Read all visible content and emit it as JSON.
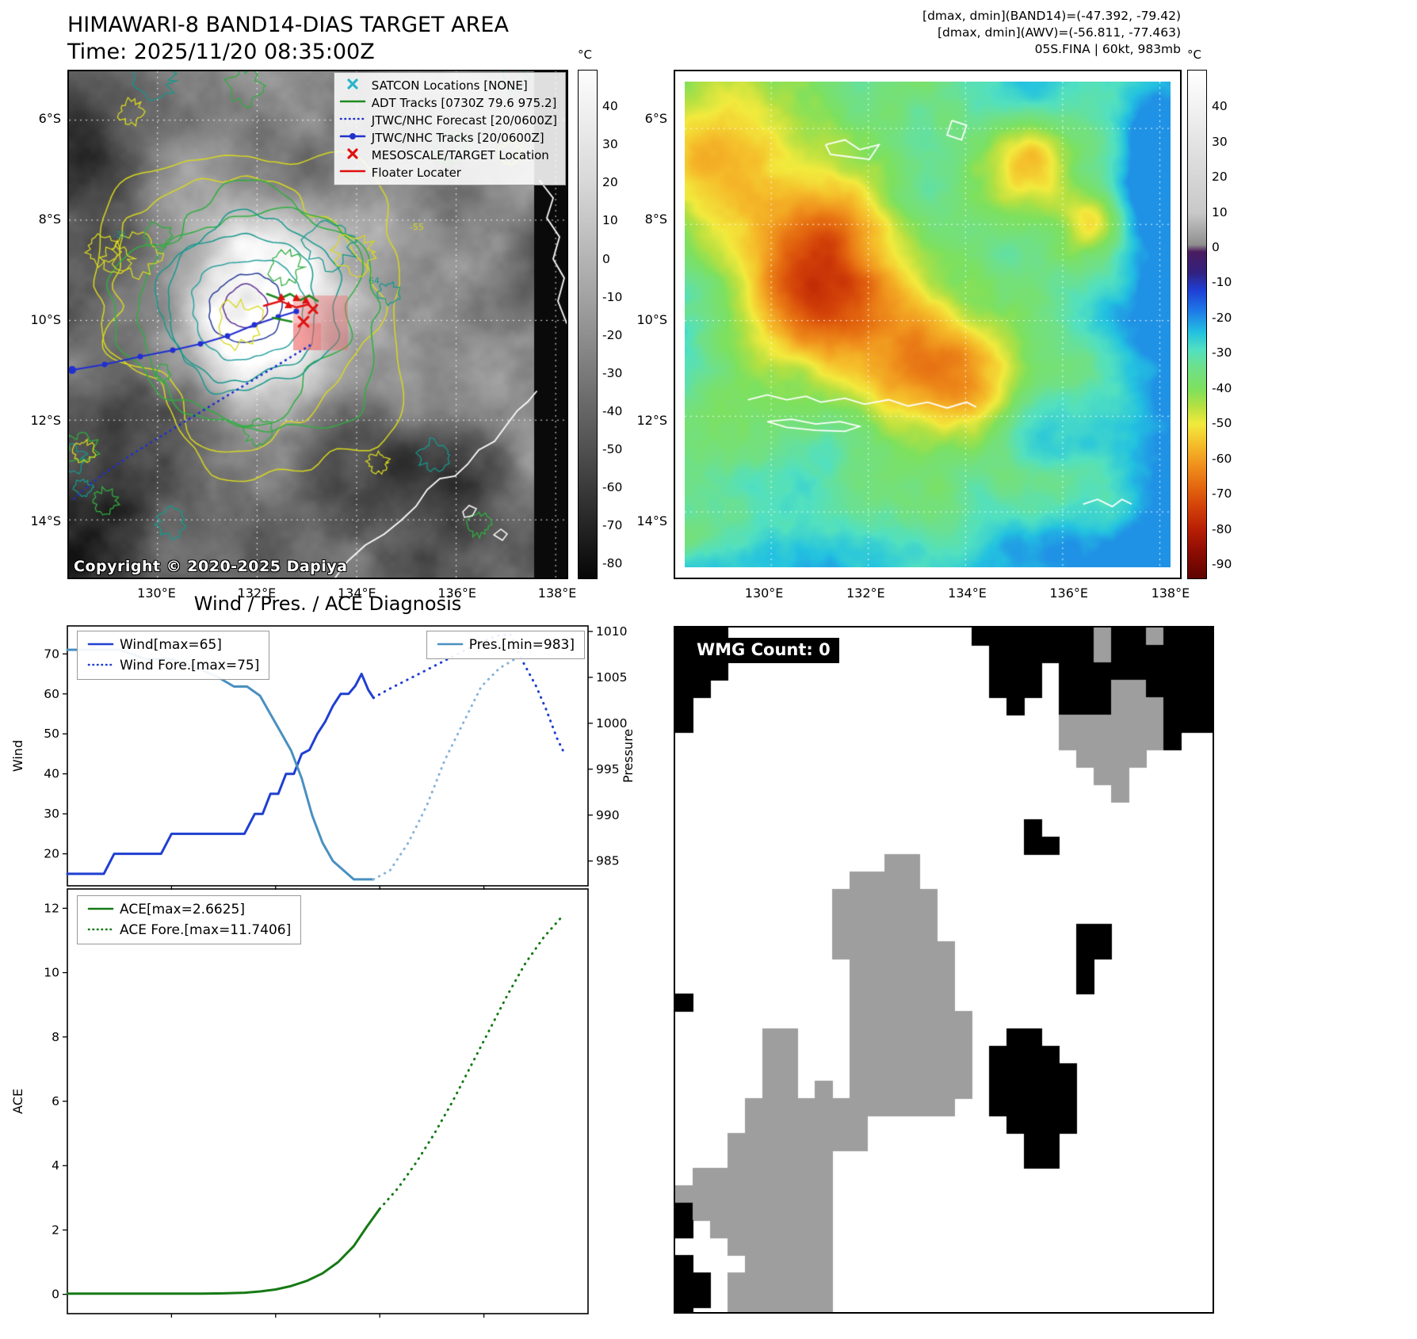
{
  "panel_band14": {
    "title": "HIMAWARI-8 BAND14-DIAS TARGET AREA",
    "subtitle": "Time: 2025/11/20 08:35:00Z",
    "copyright": "Copyright © 2020-2025 Dapiya",
    "legend": [
      {
        "label": "SATCON Locations [NONE]",
        "marker": "x",
        "color": "#29b6c8"
      },
      {
        "label": "ADT Tracks [0730Z 79.6 975.2]",
        "marker": "line",
        "color": "#1e8a1e"
      },
      {
        "label": "JTWC/NHC Forecast [20/0600Z]",
        "marker": "dotted",
        "color": "#2233cc"
      },
      {
        "label": "JTWC/NHC Tracks [20/0600Z]",
        "marker": "line-dot",
        "color": "#2233cc"
      },
      {
        "label": "MESOSCALE/TARGET Location",
        "marker": "x",
        "color": "#e01010"
      },
      {
        "label": "Floater Locater",
        "marker": "line",
        "color": "#e01010"
      }
    ],
    "x_ticks": [
      "130°E",
      "132°E",
      "134°E",
      "136°E",
      "138°E"
    ],
    "y_ticks": [
      "6°S",
      "8°S",
      "10°S",
      "12°S",
      "14°S"
    ],
    "colorbar": {
      "unit": "°C",
      "ticks": [
        40,
        30,
        20,
        10,
        0,
        -10,
        -20,
        -30,
        -40,
        -50,
        -60,
        -70,
        -80
      ]
    }
  },
  "panel_awv": {
    "header_lines": [
      "[dmax, dmin](BAND14)=(-47.392, -79.42)",
      "[dmax, dmin](AWV)=(-56.811, -77.463)",
      "05S.FINA | 60kt, 983mb"
    ],
    "x_ticks": [
      "130°E",
      "132°E",
      "134°E",
      "136°E",
      "138°E"
    ],
    "y_ticks": [
      "6°S",
      "8°S",
      "10°S",
      "12°S",
      "14°S"
    ],
    "colorbar": {
      "unit": "°C",
      "ticks": [
        40,
        30,
        20,
        10,
        0,
        -10,
        -20,
        -30,
        -40,
        -50,
        -60,
        -70,
        -80,
        -90
      ],
      "palette": [
        [
          50,
          "#ffffff"
        ],
        [
          10,
          "#c8c8c8"
        ],
        [
          1,
          "#8f8f8f"
        ],
        [
          -1,
          "#4a1c5f"
        ],
        [
          -7,
          "#32217f"
        ],
        [
          -12,
          "#1f3fd6"
        ],
        [
          -18,
          "#1e7ae8"
        ],
        [
          -24,
          "#23c2e0"
        ],
        [
          -29,
          "#52e0c0"
        ],
        [
          -34,
          "#6fe08a"
        ],
        [
          -40,
          "#7de05e"
        ],
        [
          -45,
          "#b4e042"
        ],
        [
          -50,
          "#f2ea3d"
        ],
        [
          -56,
          "#f5bc2a"
        ],
        [
          -62,
          "#ef8f1c"
        ],
        [
          -68,
          "#e3660f"
        ],
        [
          -74,
          "#d13f08"
        ],
        [
          -80,
          "#b81f05"
        ],
        [
          -86,
          "#8f0d03"
        ],
        [
          -94,
          "#5f0400"
        ]
      ]
    }
  },
  "wmg": {
    "label": "WMG Count: 0"
  },
  "chart_data": [
    {
      "type": "line",
      "title": "Wind / Pres. / ACE Diagnosis",
      "ylabel_left": "Wind",
      "ylabel_right": "Pressure",
      "y_left_ticks": [
        20,
        30,
        40,
        50,
        60,
        70
      ],
      "y_right_ticks": [
        985,
        990,
        995,
        1000,
        1005,
        1010
      ],
      "y_left_range": [
        12,
        77
      ],
      "y_right_range": [
        982.3,
        1010.6
      ],
      "x_range": [
        0,
        1
      ],
      "legend": [
        {
          "label": "Wind[max=65]",
          "marker": "line",
          "color": "#1f3fd1"
        },
        {
          "label": "Wind Fore.[max=75]",
          "marker": "dotted",
          "color": "#1f3fd1"
        }
      ],
      "legend_right": [
        {
          "label": "Pres.[min=983]",
          "marker": "line",
          "color": "#4a90c0"
        }
      ],
      "series": [
        {
          "name": "Wind",
          "axis": "left",
          "style": "solid",
          "color": "#1f3fd1",
          "x": [
            0.0,
            0.04,
            0.07,
            0.09,
            0.12,
            0.15,
            0.18,
            0.2,
            0.22,
            0.25,
            0.28,
            0.31,
            0.34,
            0.36,
            0.375,
            0.39,
            0.405,
            0.42,
            0.435,
            0.45,
            0.465,
            0.48,
            0.495,
            0.51,
            0.525,
            0.54,
            0.553,
            0.565,
            0.578,
            0.588
          ],
          "y": [
            15,
            15,
            15,
            20,
            20,
            20,
            20,
            25,
            25,
            25,
            25,
            25,
            25,
            30,
            30,
            35,
            35,
            40,
            40,
            45,
            46,
            50,
            53,
            57,
            60,
            60,
            62,
            65,
            61,
            59
          ]
        },
        {
          "name": "Wind Fore.",
          "axis": "left",
          "style": "dotted",
          "color": "#1f3fd1",
          "x": [
            0.588,
            0.615,
            0.645,
            0.675,
            0.705,
            0.735,
            0.765,
            0.795,
            0.825,
            0.85,
            0.875,
            0.9,
            0.92,
            0.94,
            0.955
          ],
          "y": [
            59,
            61,
            63,
            65,
            67,
            69,
            71,
            73,
            74.5,
            75,
            68,
            62,
            56,
            49,
            45
          ]
        },
        {
          "name": "Pres.",
          "axis": "right",
          "style": "solid",
          "color": "#4a90c0",
          "x": [
            0.0,
            0.05,
            0.1,
            0.15,
            0.2,
            0.25,
            0.29,
            0.32,
            0.345,
            0.37,
            0.39,
            0.41,
            0.43,
            0.45,
            0.47,
            0.49,
            0.51,
            0.53,
            0.55,
            0.57,
            0.588
          ],
          "y": [
            1008,
            1008,
            1008,
            1007,
            1007,
            1006,
            1005,
            1004,
            1004,
            1003,
            1001,
            999,
            997,
            994,
            990,
            987,
            985,
            984,
            983,
            983,
            983
          ]
        },
        {
          "name": "Pres. Fore.",
          "axis": "right",
          "style": "dotted",
          "color": "#8ab4d8",
          "x": [
            0.588,
            0.62,
            0.655,
            0.69,
            0.725,
            0.76,
            0.795,
            0.83,
            0.86
          ],
          "y": [
            983,
            984,
            987,
            991,
            996,
            1000,
            1004,
            1006,
            1007
          ]
        }
      ]
    },
    {
      "type": "line",
      "title": "",
      "ylabel_left": "ACE",
      "y_left_ticks": [
        0,
        2,
        4,
        6,
        8,
        10,
        12
      ],
      "y_left_range": [
        -0.6,
        12.6
      ],
      "x_range": [
        0,
        1
      ],
      "legend": [
        {
          "label": "ACE[max=2.6625]",
          "marker": "line",
          "color": "#157a15"
        },
        {
          "label": "ACE Fore.[max=11.7406]",
          "marker": "dotted",
          "color": "#157a15"
        }
      ],
      "series": [
        {
          "name": "ACE",
          "axis": "left",
          "style": "solid",
          "color": "#157a15",
          "x": [
            0.0,
            0.05,
            0.1,
            0.15,
            0.2,
            0.25,
            0.3,
            0.34,
            0.37,
            0.4,
            0.43,
            0.46,
            0.49,
            0.52,
            0.55,
            0.575,
            0.6
          ],
          "y": [
            0.02,
            0.02,
            0.02,
            0.02,
            0.02,
            0.02,
            0.03,
            0.05,
            0.09,
            0.15,
            0.26,
            0.42,
            0.65,
            1.0,
            1.5,
            2.1,
            2.66
          ]
        },
        {
          "name": "ACE Fore.",
          "axis": "left",
          "style": "dotted",
          "color": "#157a15",
          "x": [
            0.6,
            0.635,
            0.67,
            0.705,
            0.74,
            0.775,
            0.81,
            0.845,
            0.88,
            0.915,
            0.95
          ],
          "y": [
            2.66,
            3.3,
            4.1,
            5.0,
            6.0,
            7.1,
            8.2,
            9.3,
            10.3,
            11.1,
            11.74
          ]
        }
      ]
    }
  ]
}
